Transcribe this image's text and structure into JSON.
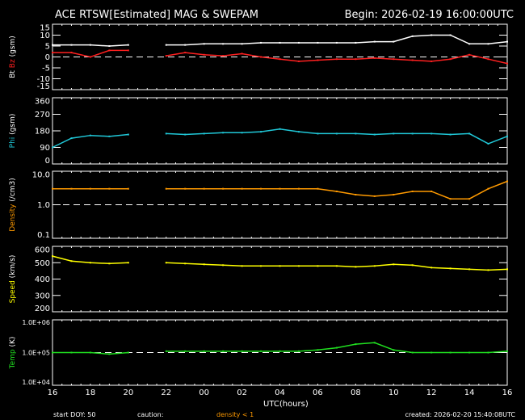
{
  "header": {
    "title": "ACE RTSW[Estimated] MAG & SWEPAM",
    "begin": "Begin: 2026-02-19 16:00:00UTC"
  },
  "footer": {
    "start_doy": "start DOY:  50",
    "caution": "caution:",
    "density_note": "density < 1",
    "created": "created: 2026-02-20 15:40:08UTC"
  },
  "chart_data": {
    "type": "line",
    "xlabel": "UTC(hours)",
    "x_tick_labels": [
      "16",
      "18",
      "20",
      "22",
      "00",
      "02",
      "04",
      "06",
      "08",
      "10",
      "12",
      "14",
      "16"
    ],
    "x": [
      "16",
      "17",
      "18",
      "19",
      "20",
      "21",
      "22",
      "23",
      "00",
      "01",
      "02",
      "03",
      "04",
      "05",
      "06",
      "07",
      "08",
      "09",
      "10",
      "11",
      "12",
      "13",
      "14",
      "15",
      "16"
    ],
    "panels": [
      {
        "ylabel_parts": [
          {
            "text": "Bt",
            "color": "#ffffff"
          },
          {
            "text": " Bz",
            "color": "#ff2020"
          },
          {
            "text": " (gsm)",
            "color": "#ffffff"
          }
        ],
        "scale": "linear",
        "ylim": [
          -15,
          15
        ],
        "ticks": [
          "15",
          "10",
          "5",
          "0",
          "-5",
          "-10",
          "-15"
        ],
        "tick_values": [
          15,
          10,
          5,
          0,
          -5,
          -10,
          -15
        ],
        "ref_line": 0,
        "series": [
          {
            "name": "Bt",
            "color": "#ffffff",
            "values": [
              5.5,
              5.5,
              5.5,
              5,
              5.5,
              null,
              5.5,
              5.5,
              6,
              6,
              6,
              6.5,
              6.5,
              6.5,
              6.5,
              6.5,
              6.5,
              7,
              7,
              9.5,
              10,
              10,
              6,
              6,
              7
            ]
          },
          {
            "name": "Bz",
            "color": "#ff2020",
            "values": [
              2,
              2,
              0,
              3,
              3,
              null,
              0.5,
              2,
              1,
              0.5,
              1.5,
              0,
              -1,
              -2,
              -1.5,
              -1,
              -1,
              -0.5,
              -1,
              -1.5,
              -2,
              -1,
              1,
              -1,
              -3
            ]
          }
        ]
      },
      {
        "ylabel_parts": [
          {
            "text": "Phi",
            "color": "#20c8d8"
          },
          {
            "text": " (gsm)",
            "color": "#ffffff"
          }
        ],
        "scale": "linear",
        "ylim": [
          0,
          360
        ],
        "ticks": [
          "360",
          "270",
          "180",
          "90",
          "0"
        ],
        "tick_values": [
          360,
          270,
          180,
          90,
          0
        ],
        "ref_line": null,
        "series": [
          {
            "name": "Phi",
            "color": "#20c8d8",
            "values": [
              90,
              140,
              155,
              150,
              160,
              null,
              165,
              160,
              165,
              170,
              170,
              175,
              190,
              175,
              165,
              165,
              165,
              160,
              165,
              165,
              165,
              160,
              165,
              110,
              150
            ]
          }
        ]
      },
      {
        "ylabel_parts": [
          {
            "text": "Density",
            "color": "#ff9a00"
          },
          {
            "text": " (/cm3)",
            "color": "#ffffff"
          }
        ],
        "scale": "log",
        "ylim": [
          0.1,
          10
        ],
        "ticks": [
          "10.0",
          "1.0",
          "0.1"
        ],
        "tick_values": [
          10,
          1,
          0.1
        ],
        "ref_line": 1,
        "series": [
          {
            "name": "Density",
            "color": "#ff9a00",
            "values": [
              3,
              3,
              3,
              3,
              3,
              null,
              3,
              3,
              3,
              3,
              3,
              3,
              3,
              3,
              3,
              2.5,
              2,
              1.8,
              2,
              2.5,
              2.5,
              1.5,
              1.5,
              3,
              5
            ]
          }
        ]
      },
      {
        "ylabel_parts": [
          {
            "text": "Speed",
            "color": "#ffff00"
          },
          {
            "text": " (km/s)",
            "color": "#ffffff"
          }
        ],
        "scale": "linear",
        "ylim": [
          200,
          600
        ],
        "ticks": [
          "600",
          "500",
          "400",
          "300",
          "200"
        ],
        "tick_values": [
          600,
          500,
          400,
          300,
          200
        ],
        "ref_line": null,
        "series": [
          {
            "name": "Speed",
            "color": "#ffff00",
            "values": [
              540,
              510,
              500,
              495,
              500,
              null,
              500,
              495,
              490,
              485,
              480,
              480,
              480,
              480,
              480,
              480,
              475,
              480,
              490,
              485,
              470,
              465,
              460,
              455,
              460
            ]
          }
        ]
      },
      {
        "ylabel_parts": [
          {
            "text": "Temp",
            "color": "#20e020"
          },
          {
            "text": " (K)",
            "color": "#ffffff"
          }
        ],
        "scale": "log",
        "ylim": [
          10000,
          1000000
        ],
        "ticks": [
          "1.0E+06",
          "1.0E+05",
          "1.0E+04"
        ],
        "tick_values": [
          1000000,
          100000,
          10000
        ],
        "ref_line": 100000,
        "series": [
          {
            "name": "Temp",
            "color": "#20e020",
            "values": [
              100000,
              100000,
              100000,
              90000,
              100000,
              null,
              110000,
              110000,
              110000,
              110000,
              110000,
              110000,
              110000,
              110000,
              120000,
              140000,
              180000,
              200000,
              120000,
              100000,
              100000,
              100000,
              100000,
              100000,
              110000
            ]
          }
        ]
      }
    ]
  }
}
